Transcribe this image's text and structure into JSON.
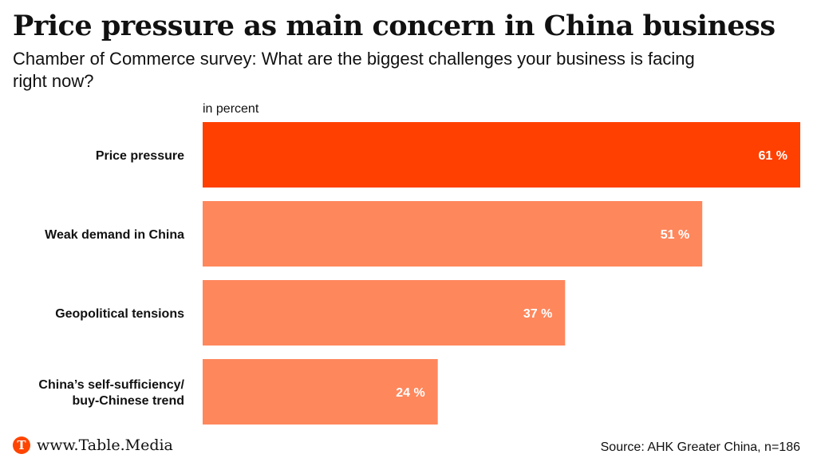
{
  "title": "Price pressure as main concern in China business",
  "subtitle": "Chamber of Commerce survey: What are the biggest challenges your business is facing right now?",
  "unit_label": "in percent",
  "chart_data": {
    "type": "bar",
    "orientation": "horizontal",
    "categories": [
      [
        "Price pressure"
      ],
      [
        "Weak demand in China"
      ],
      [
        "Geopolitical tensions"
      ],
      [
        "China’s self-sufficiency/",
        "buy-Chinese trend"
      ]
    ],
    "values": [
      61,
      51,
      37,
      24
    ],
    "value_labels": [
      "61 %",
      "51 %",
      "37 %",
      "24 %"
    ],
    "xlim": [
      0,
      61
    ],
    "unit": "%",
    "colors": [
      "#ff4000",
      "#ff875c",
      "#ff875c",
      "#ff875c"
    ]
  },
  "footer": {
    "logo_letter": "T",
    "logo_text": "www.Table.Media",
    "source": "Source: AHK Greater China, n=186"
  }
}
